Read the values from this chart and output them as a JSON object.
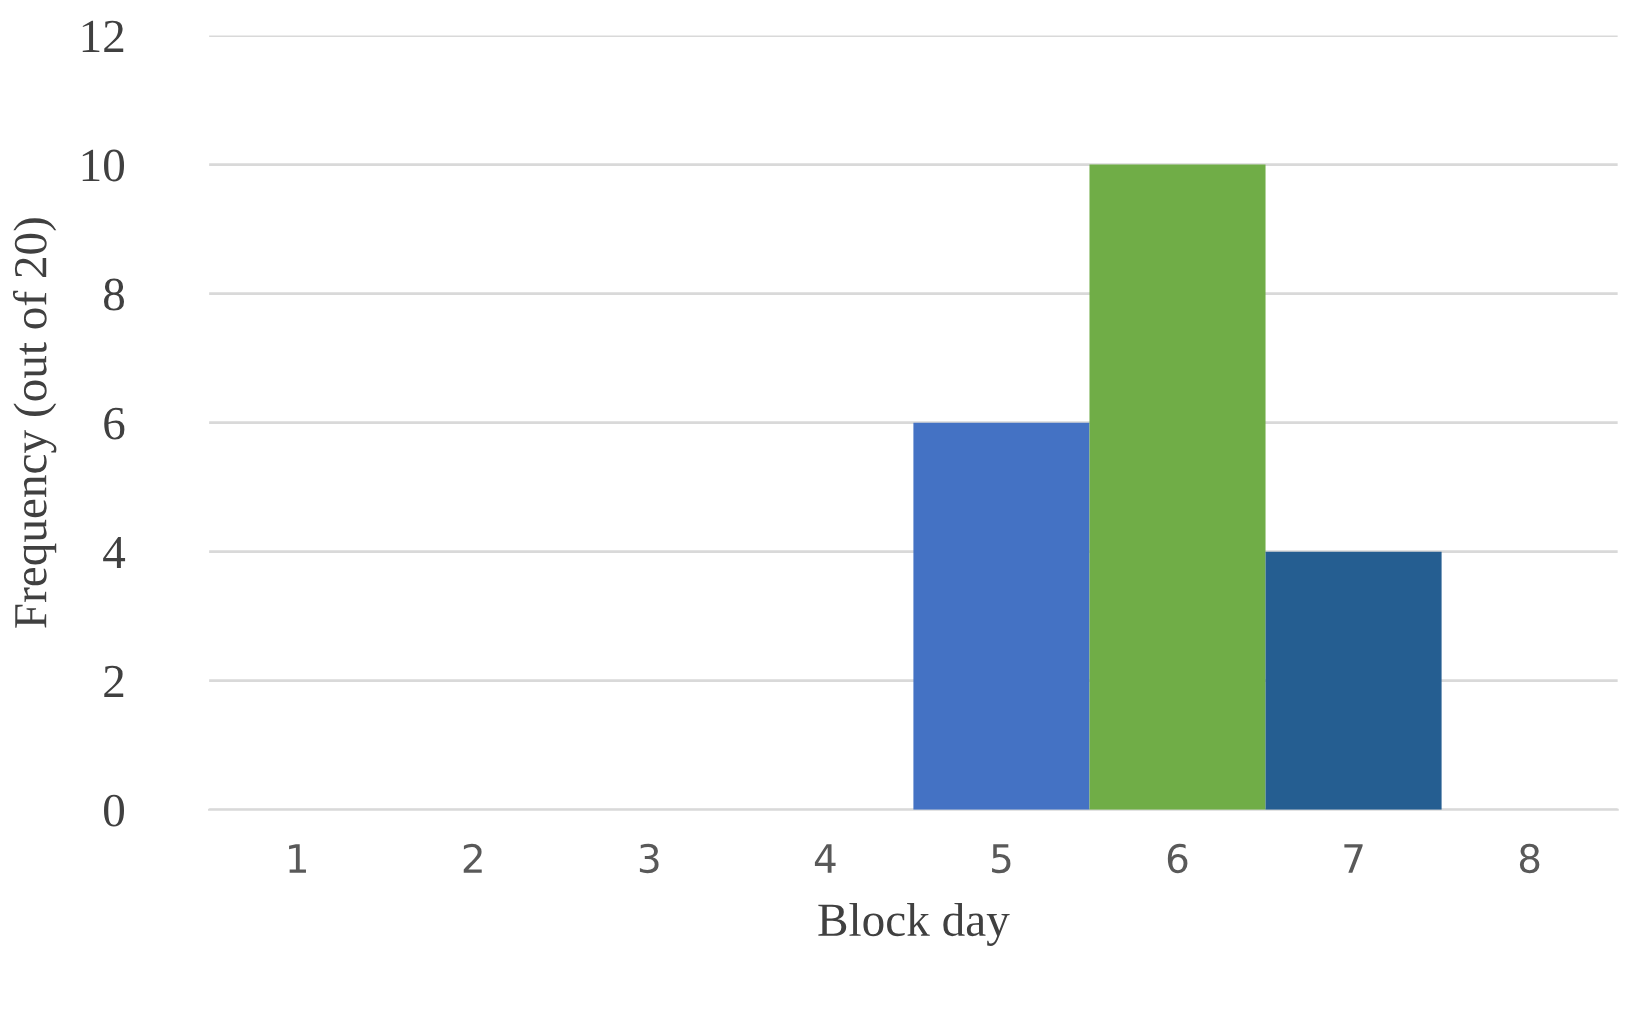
{
  "chart_data": {
    "type": "bar",
    "xlabel": "Block day",
    "ylabel": "Frequency (out of 20)",
    "categories": [
      "1",
      "2",
      "3",
      "4",
      "5",
      "6",
      "7",
      "8"
    ],
    "values": [
      0,
      0,
      0,
      0,
      6,
      10,
      4,
      0
    ],
    "colors": [
      "#4472c4",
      "#4472c4",
      "#4472c4",
      "#4472c4",
      "#4472c4",
      "#70ad47",
      "#255e91",
      "#4472c4"
    ],
    "ylim": [
      0,
      12
    ],
    "yticks": [
      0,
      2,
      4,
      6,
      8,
      10,
      12
    ],
    "grid": "y"
  }
}
